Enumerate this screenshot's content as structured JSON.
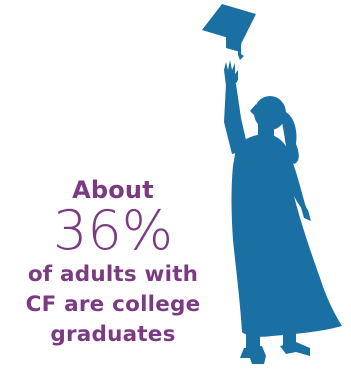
{
  "stat": {
    "prefix": "About",
    "value": "36%",
    "line1": "of adults with",
    "line2": "CF are college",
    "line3": "graduates"
  },
  "colors": {
    "figure": "#1a6fa3",
    "text": "#7b3b83"
  },
  "icons": {
    "figure": "graduate-silhouette-icon",
    "cap": "mortarboard-icon"
  }
}
